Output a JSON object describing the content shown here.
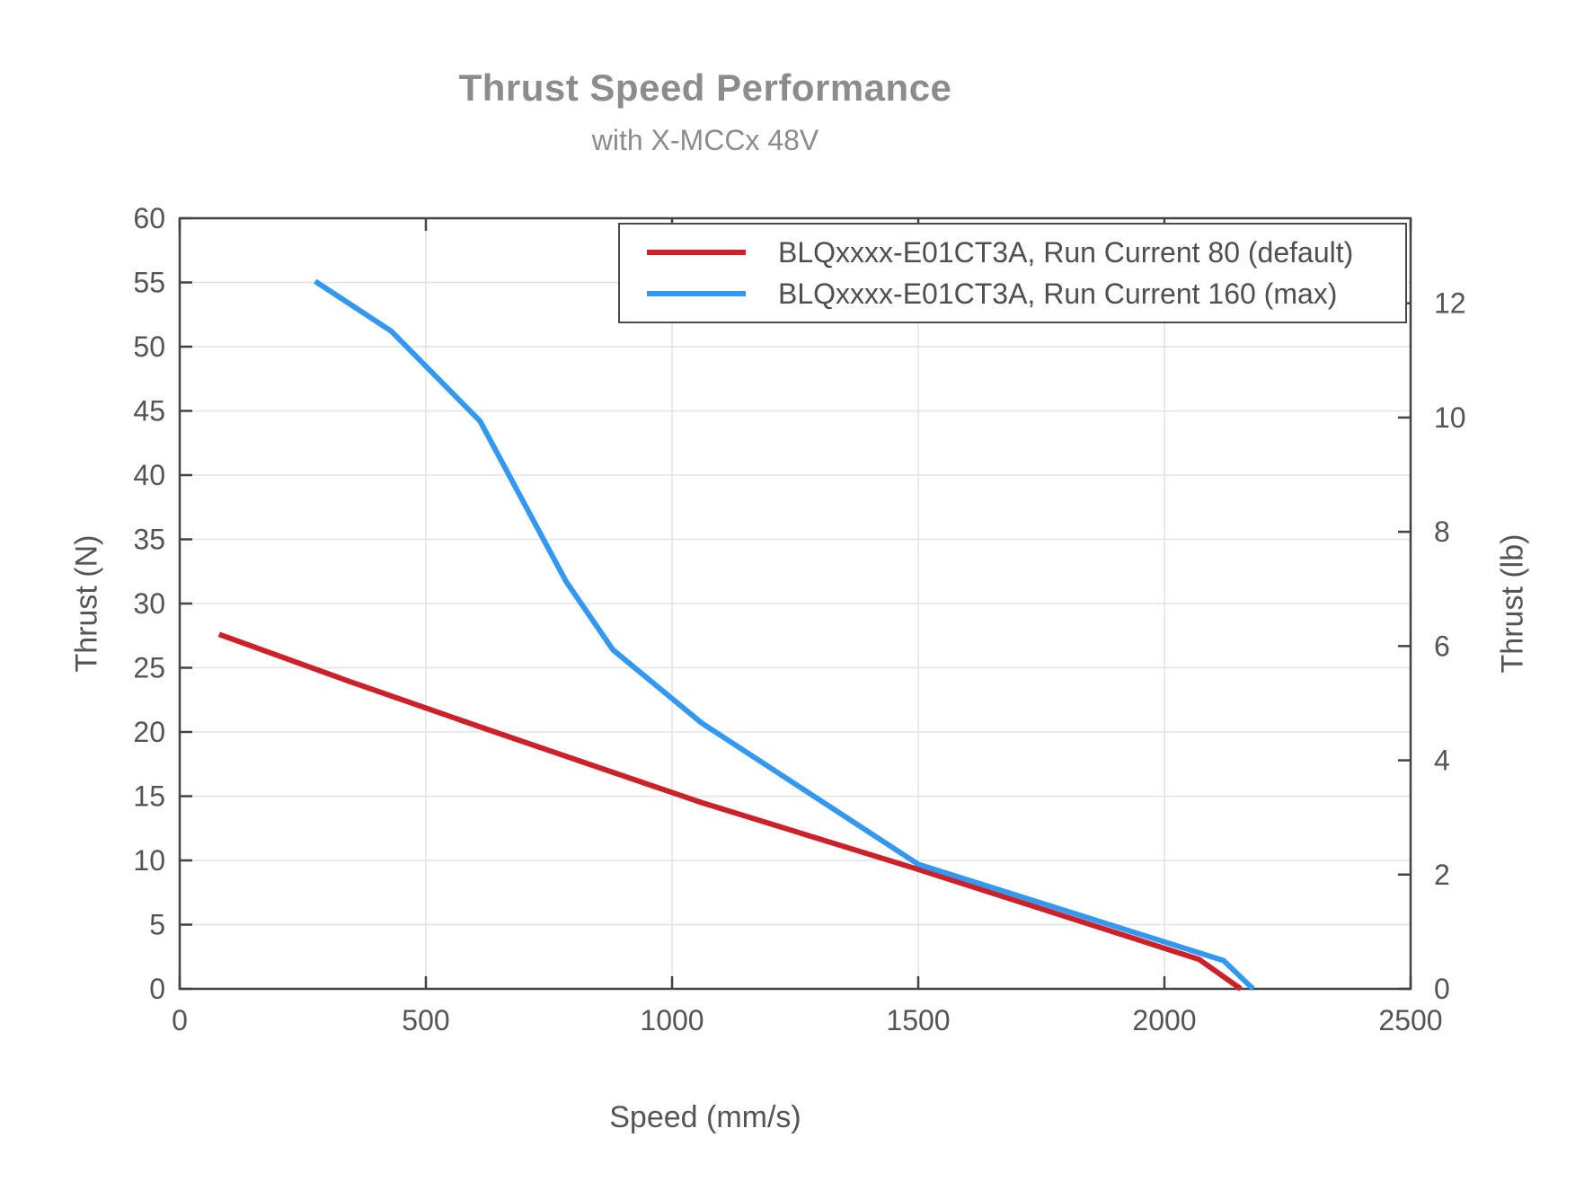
{
  "title": "Thrust Speed Performance",
  "subtitle": "with X-MCCx 48V",
  "colors": {
    "grid": "#e3e3e3",
    "frame": "#424242",
    "tick_text": "#545454",
    "title_text": "#8c8c8c",
    "axis_label_text": "#555555",
    "legend_text": "#4f4f4f",
    "red_series": "#cd2129",
    "blue_series": "#3399f0"
  },
  "chart_data": {
    "type": "line",
    "title": "Thrust Speed Performance",
    "subtitle": "with X-MCCx 48V",
    "xlabel": "Speed (mm/s)",
    "ylabel_left": "Thrust (N)",
    "ylabel_right": "Thrust (lb)",
    "xlim": [
      0,
      2500
    ],
    "ylim_left": [
      0,
      60
    ],
    "ylim_right_lb": [
      0,
      13.5
    ],
    "x_ticks": [
      0,
      500,
      1000,
      1500,
      2000,
      2500
    ],
    "y_ticks_left": [
      0,
      5,
      10,
      15,
      20,
      25,
      30,
      35,
      40,
      45,
      50,
      55,
      60
    ],
    "y_ticks_right_lb": [
      0,
      2,
      4,
      6,
      8,
      10,
      12
    ],
    "grid": true,
    "legend_position": "top-right",
    "series": [
      {
        "name": "BLQxxxx-E01CT3A, Run Current 80 (default)",
        "color": "#cd2129",
        "points": [
          [
            80,
            27.6
          ],
          [
            340,
            24.0
          ],
          [
            640,
            20.0
          ],
          [
            1060,
            14.5
          ],
          [
            1500,
            9.3
          ],
          [
            2070,
            2.3
          ],
          [
            2155,
            0
          ]
        ]
      },
      {
        "name": "BLQxxxx-E01CT3A, Run Current 160 (max)",
        "color": "#3399f0",
        "points": [
          [
            275,
            55.1
          ],
          [
            430,
            51.2
          ],
          [
            610,
            44.2
          ],
          [
            785,
            31.7
          ],
          [
            880,
            26.4
          ],
          [
            1060,
            20.7
          ],
          [
            1500,
            9.7
          ],
          [
            2120,
            2.2
          ],
          [
            2180,
            0
          ]
        ]
      }
    ]
  }
}
